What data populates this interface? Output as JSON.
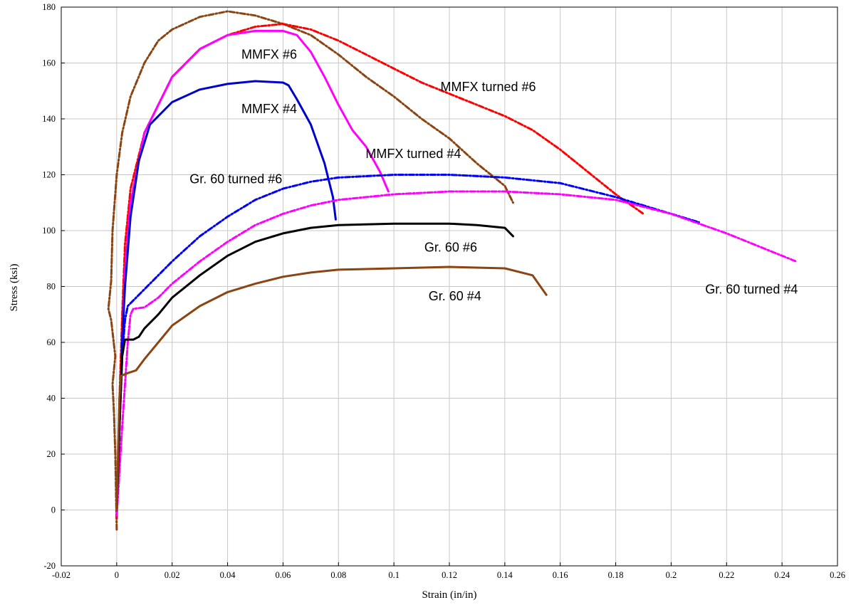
{
  "chart_data": {
    "type": "line",
    "title": "",
    "xlabel": "Strain (in/in)",
    "ylabel": "Stress (ksi)",
    "xlim": [
      -0.02,
      0.26
    ],
    "ylim": [
      -20,
      180
    ],
    "grid": true,
    "x_ticks": [
      -0.02,
      0,
      0.02,
      0.04,
      0.06,
      0.08,
      0.1,
      0.12,
      0.14,
      0.16,
      0.18,
      0.2,
      0.22,
      0.24,
      0.26
    ],
    "x_tick_labels": [
      "-0.02",
      "0",
      "0.02",
      "0.04",
      "0.06",
      "0.08",
      "0.1",
      "0.12",
      "0.14",
      "0.16",
      "0.18",
      "0.2",
      "0.22",
      "0.24",
      "0.26"
    ],
    "y_ticks": [
      -20,
      0,
      20,
      40,
      60,
      80,
      100,
      120,
      140,
      160,
      180
    ],
    "y_tick_labels": [
      "-20",
      "0",
      "20",
      "40",
      "60",
      "80",
      "100",
      "120",
      "140",
      "160",
      "180"
    ],
    "series": [
      {
        "name": "MMFX turned #6",
        "color": "#8b4513",
        "style": "dashdot",
        "points": [
          [
            0.0,
            -7
          ],
          [
            -0.0005,
            20
          ],
          [
            -0.001,
            35
          ],
          [
            -0.0015,
            45
          ],
          [
            -0.0005,
            55
          ],
          [
            -0.002,
            68
          ],
          [
            -0.003,
            72
          ],
          [
            -0.002,
            82
          ],
          [
            -0.0015,
            100
          ],
          [
            0.0,
            120
          ],
          [
            0.002,
            135
          ],
          [
            0.005,
            148
          ],
          [
            0.01,
            160
          ],
          [
            0.015,
            168
          ],
          [
            0.02,
            172
          ],
          [
            0.03,
            176.5
          ],
          [
            0.04,
            178.5
          ],
          [
            0.05,
            177
          ],
          [
            0.06,
            174
          ],
          [
            0.07,
            170
          ],
          [
            0.08,
            163
          ],
          [
            0.09,
            155
          ],
          [
            0.1,
            148
          ],
          [
            0.11,
            140
          ],
          [
            0.12,
            133
          ],
          [
            0.13,
            124
          ],
          [
            0.14,
            116
          ],
          [
            0.143,
            110
          ]
        ]
      },
      {
        "name": "MMFX turned #6",
        "color": "#ff0000",
        "style": "dashdot",
        "points": [
          [
            0.0,
            -3
          ],
          [
            0.001,
            40
          ],
          [
            0.002,
            70
          ],
          [
            0.003,
            95
          ],
          [
            0.005,
            115
          ],
          [
            0.01,
            135
          ],
          [
            0.02,
            155
          ],
          [
            0.03,
            165
          ],
          [
            0.04,
            170
          ],
          [
            0.05,
            173
          ],
          [
            0.06,
            174
          ],
          [
            0.07,
            172
          ],
          [
            0.08,
            168
          ],
          [
            0.09,
            163
          ],
          [
            0.1,
            158
          ],
          [
            0.11,
            153
          ],
          [
            0.12,
            149
          ],
          [
            0.13,
            145
          ],
          [
            0.14,
            141
          ],
          [
            0.15,
            136
          ],
          [
            0.16,
            129
          ],
          [
            0.17,
            121
          ],
          [
            0.18,
            113
          ],
          [
            0.19,
            106
          ]
        ]
      },
      {
        "name": "MMFX #6",
        "color": "#ff00ff",
        "style": "solid",
        "points": [
          [
            0.0,
            0
          ],
          [
            0.001,
            30
          ],
          [
            0.002,
            60
          ],
          [
            0.003,
            85
          ],
          [
            0.005,
            110
          ],
          [
            0.01,
            135
          ],
          [
            0.02,
            155
          ],
          [
            0.03,
            165
          ],
          [
            0.04,
            170
          ],
          [
            0.05,
            171.5
          ],
          [
            0.06,
            171.5
          ],
          [
            0.065,
            170
          ],
          [
            0.07,
            164
          ],
          [
            0.075,
            155
          ],
          [
            0.08,
            145
          ],
          [
            0.085,
            136
          ],
          [
            0.09,
            130
          ],
          [
            0.095,
            121
          ],
          [
            0.098,
            114
          ]
        ]
      },
      {
        "name": "MMFX #4",
        "color": "#0000cc",
        "style": "solid",
        "points": [
          [
            0.0,
            0
          ],
          [
            0.001,
            30
          ],
          [
            0.002,
            60
          ],
          [
            0.003,
            80
          ],
          [
            0.005,
            105
          ],
          [
            0.008,
            125
          ],
          [
            0.012,
            138
          ],
          [
            0.02,
            146
          ],
          [
            0.03,
            150.5
          ],
          [
            0.04,
            152.5
          ],
          [
            0.05,
            153.5
          ],
          [
            0.06,
            153
          ],
          [
            0.062,
            152
          ],
          [
            0.065,
            147
          ],
          [
            0.07,
            138
          ],
          [
            0.075,
            124
          ],
          [
            0.078,
            112
          ],
          [
            0.079,
            104
          ]
        ]
      },
      {
        "name": "Gr. 60 turned #6",
        "color": "#0000ff",
        "style": "dashdot",
        "points": [
          [
            0.0,
            -2
          ],
          [
            0.001,
            30
          ],
          [
            0.002,
            55
          ],
          [
            0.003,
            68
          ],
          [
            0.004,
            73
          ],
          [
            0.006,
            75
          ],
          [
            0.01,
            79
          ],
          [
            0.015,
            84
          ],
          [
            0.02,
            89
          ],
          [
            0.03,
            98
          ],
          [
            0.04,
            105
          ],
          [
            0.05,
            111
          ],
          [
            0.06,
            115
          ],
          [
            0.07,
            117.5
          ],
          [
            0.08,
            119
          ],
          [
            0.09,
            119.5
          ],
          [
            0.1,
            120
          ],
          [
            0.12,
            120
          ],
          [
            0.14,
            119
          ],
          [
            0.16,
            117
          ],
          [
            0.18,
            112
          ],
          [
            0.2,
            106
          ],
          [
            0.21,
            103
          ]
        ]
      },
      {
        "name": "Gr. 60 turned #4",
        "color": "#ff00ff",
        "style": "dashdot",
        "points": [
          [
            0.0,
            -2
          ],
          [
            0.002,
            30
          ],
          [
            0.004,
            60
          ],
          [
            0.005,
            70
          ],
          [
            0.006,
            72
          ],
          [
            0.01,
            72.5
          ],
          [
            0.015,
            76
          ],
          [
            0.02,
            81
          ],
          [
            0.03,
            89
          ],
          [
            0.04,
            96
          ],
          [
            0.05,
            102
          ],
          [
            0.06,
            106
          ],
          [
            0.07,
            109
          ],
          [
            0.08,
            111
          ],
          [
            0.1,
            113
          ],
          [
            0.12,
            114
          ],
          [
            0.14,
            114
          ],
          [
            0.16,
            113
          ],
          [
            0.18,
            111
          ],
          [
            0.2,
            106
          ],
          [
            0.22,
            99
          ],
          [
            0.24,
            91
          ],
          [
            0.245,
            89
          ]
        ]
      },
      {
        "name": "Gr. 60 #6",
        "color": "#000000",
        "style": "solid",
        "points": [
          [
            0.0,
            0
          ],
          [
            0.001,
            30
          ],
          [
            0.002,
            55
          ],
          [
            0.003,
            61
          ],
          [
            0.006,
            61
          ],
          [
            0.008,
            62
          ],
          [
            0.01,
            65
          ],
          [
            0.015,
            70
          ],
          [
            0.02,
            76
          ],
          [
            0.03,
            84
          ],
          [
            0.04,
            91
          ],
          [
            0.05,
            96
          ],
          [
            0.06,
            99
          ],
          [
            0.07,
            101
          ],
          [
            0.08,
            102
          ],
          [
            0.1,
            102.5
          ],
          [
            0.12,
            102.5
          ],
          [
            0.13,
            102
          ],
          [
            0.14,
            101
          ],
          [
            0.143,
            98
          ]
        ]
      },
      {
        "name": "Gr. 60 #4",
        "color": "#8b4513",
        "style": "solid",
        "points": [
          [
            0.0,
            0
          ],
          [
            0.0005,
            20
          ],
          [
            0.001,
            40
          ],
          [
            0.0015,
            48
          ],
          [
            0.004,
            49
          ],
          [
            0.007,
            50
          ],
          [
            0.01,
            54
          ],
          [
            0.015,
            60
          ],
          [
            0.02,
            66
          ],
          [
            0.03,
            73
          ],
          [
            0.04,
            78
          ],
          [
            0.05,
            81
          ],
          [
            0.06,
            83.5
          ],
          [
            0.07,
            85
          ],
          [
            0.08,
            86
          ],
          [
            0.1,
            86.5
          ],
          [
            0.12,
            87
          ],
          [
            0.14,
            86.5
          ],
          [
            0.15,
            84
          ],
          [
            0.155,
            77
          ]
        ]
      }
    ],
    "annotations": [
      {
        "text": "MMFX #6",
        "x": 0.055,
        "y": 161.5
      },
      {
        "text": "MMFX turned #6",
        "x": 0.134,
        "y": 150
      },
      {
        "text": "MMFX #4",
        "x": 0.055,
        "y": 142
      },
      {
        "text": "MMFX turned #4",
        "x": 0.107,
        "y": 126
      },
      {
        "text": "Gr. 60 turned #6",
        "x": 0.043,
        "y": 117
      },
      {
        "text": "Gr. 60 #6",
        "x": 0.1205,
        "y": 92.5
      },
      {
        "text": "Gr. 60 turned #4",
        "x": 0.229,
        "y": 77.5
      },
      {
        "text": "Gr. 60 #4",
        "x": 0.122,
        "y": 75
      }
    ]
  }
}
